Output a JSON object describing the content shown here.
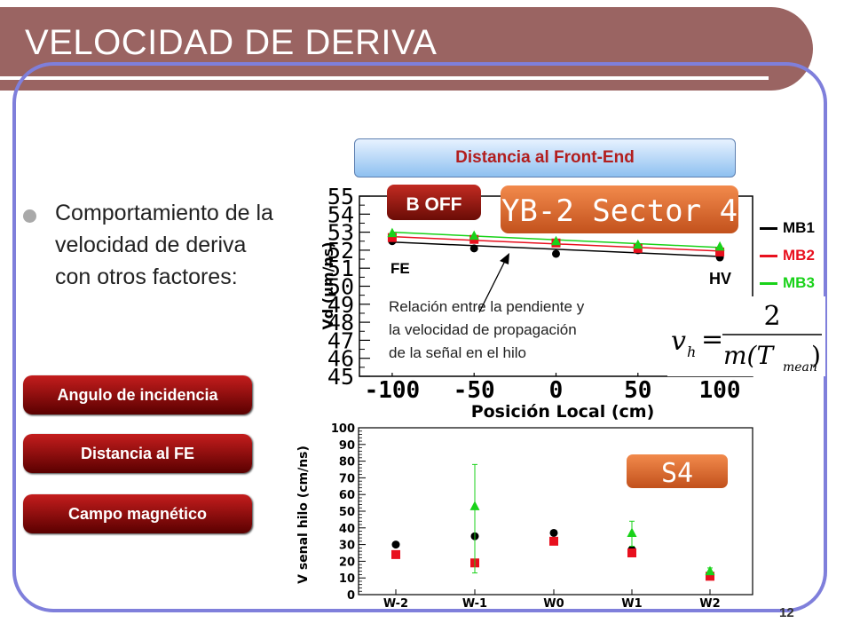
{
  "slide": {
    "title": "VELOCIDAD DE DERIVA",
    "page_number": "12",
    "bullet": "Comportamiento de la velocidad de deriva con otros factores:"
  },
  "buttons": {
    "incidence": "Angulo de incidencia",
    "fe_distance": "Distancia al FE",
    "magnetic_field": "Campo magnético"
  },
  "header_pill": "Distancia al Front-End",
  "colors": {
    "mb1": "#000000",
    "mb2": "#e8101e",
    "mb3": "#19d219",
    "frame": "#7f7fdb",
    "title_bar": "#9a6462"
  },
  "legend": [
    {
      "label": "MB1",
      "color": "#000000"
    },
    {
      "label": "MB2",
      "color": "#e8101e"
    },
    {
      "label": "MB3",
      "color": "#19d219"
    }
  ],
  "annotation": {
    "lines": [
      "Relación entre la pendiente y",
      "la velocidad de propagación",
      "de la señal en el hilo"
    ],
    "formula_lhs": "v",
    "formula_sub": "h",
    "formula_eq": "=",
    "formula_num": "2",
    "formula_den_m": "m(T",
    "formula_den_sub": "mean",
    "formula_den_close": ")"
  },
  "chart_data": [
    {
      "type": "scatter",
      "badges": [
        "B OFF",
        "YB-2 Sector 4"
      ],
      "labels": {
        "left": "FE",
        "right": "HV"
      },
      "xlabel": "Posición Local (cm)",
      "ylabel": "Vd (μm/ns)",
      "xlim": [
        -120,
        120
      ],
      "ylim": [
        45,
        55
      ],
      "xticks": [
        "-100",
        "-50",
        "0",
        "50",
        "100"
      ],
      "xtick_values": [
        -100,
        -50,
        0,
        50,
        100
      ],
      "yticks": [
        "45",
        "46",
        "47",
        "48",
        "49",
        "50",
        "51",
        "52",
        "53",
        "54",
        "55"
      ],
      "x": [
        -100,
        -50,
        0,
        50,
        100
      ],
      "series": [
        {
          "name": "MB1",
          "marker": "circle",
          "values": [
            52.5,
            52.1,
            51.8,
            52.0,
            51.6
          ],
          "fit": [
            52.45,
            51.65
          ]
        },
        {
          "name": "MB2",
          "marker": "square",
          "values": [
            52.7,
            52.6,
            52.4,
            52.1,
            51.9
          ],
          "fit": [
            52.75,
            51.95
          ]
        },
        {
          "name": "MB3",
          "marker": "triangle",
          "values": [
            52.95,
            52.8,
            52.5,
            52.3,
            52.2
          ],
          "fit": [
            53.0,
            52.15
          ]
        }
      ]
    },
    {
      "type": "scatter",
      "badge": "S4",
      "ylabel": "V senal hilo (cm/ns)",
      "categories": [
        "W-2",
        "W-1",
        "W0",
        "W1",
        "W2"
      ],
      "ylim": [
        0,
        100
      ],
      "yticks": [
        "0",
        "10",
        "20",
        "30",
        "40",
        "50",
        "60",
        "70",
        "80",
        "90",
        "100"
      ],
      "series": [
        {
          "name": "MB1",
          "marker": "circle",
          "values": [
            30,
            35,
            37,
            27,
            12
          ]
        },
        {
          "name": "MB2",
          "marker": "square",
          "values": [
            24,
            19,
            32,
            25,
            11
          ]
        },
        {
          "name": "MB3",
          "marker": "triangle",
          "values": [
            null,
            53,
            null,
            37,
            14
          ],
          "err_low": [
            null,
            40,
            null,
            8,
            2
          ],
          "err_high": [
            null,
            25,
            null,
            7,
            2
          ]
        }
      ]
    }
  ]
}
